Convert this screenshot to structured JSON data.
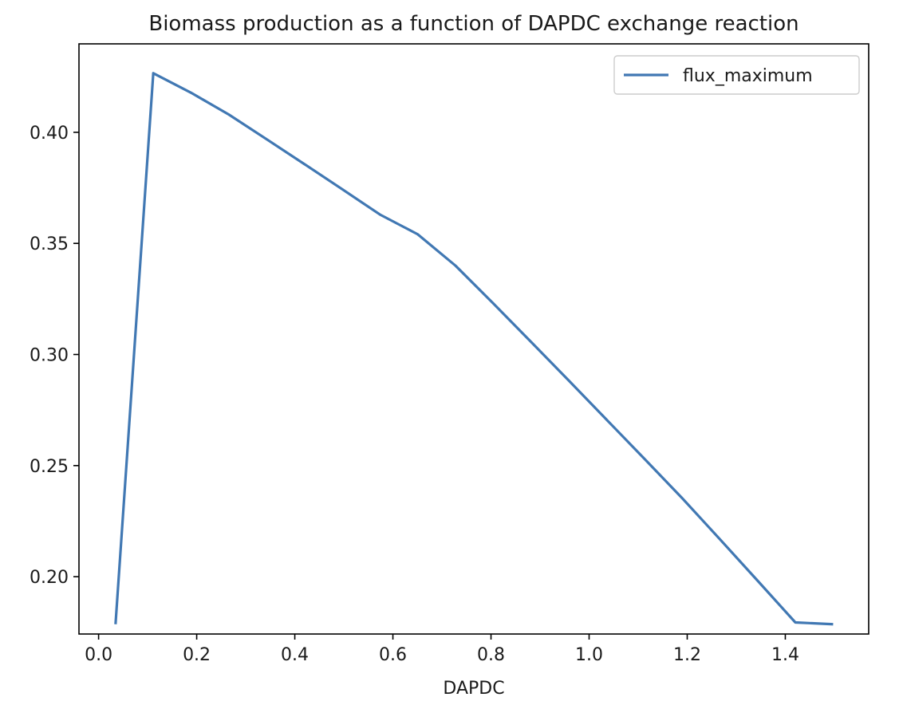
{
  "chart_data": {
    "type": "line",
    "title": "Biomass production as a function of DAPDC exchange reaction",
    "xlabel": "DAPDC",
    "ylabel": "",
    "xlim": [
      -0.04,
      1.57
    ],
    "ylim": [
      0.1742,
      0.4398
    ],
    "xticks": [
      0.0,
      0.2,
      0.4,
      0.6,
      0.8,
      1.0,
      1.2,
      1.4
    ],
    "xtick_labels": [
      "0.0",
      "0.2",
      "0.4",
      "0.6",
      "0.8",
      "1.0",
      "1.2",
      "1.4"
    ],
    "yticks": [
      0.2,
      0.25,
      0.3,
      0.35,
      0.4
    ],
    "ytick_labels": [
      "0.20",
      "0.25",
      "0.30",
      "0.35",
      "0.40"
    ],
    "grid": false,
    "legend_position": "upper right",
    "series": [
      {
        "name": "flux_maximum",
        "color": "#4178b3",
        "x": [
          0.0345,
          0.1115,
          0.1885,
          0.2655,
          0.3425,
          0.4195,
          0.4965,
          0.5735,
          0.6505,
          0.7275,
          0.8045,
          0.8815,
          0.9585,
          1.0355,
          1.1125,
          1.1895,
          1.2665,
          1.3435,
          1.4205,
          1.4975
        ],
        "y": [
          0.1786,
          0.4266,
          0.4178,
          0.408,
          0.3969,
          0.3857,
          0.3744,
          0.363,
          0.3541,
          0.34,
          0.323,
          0.3057,
          0.2883,
          0.2707,
          0.2531,
          0.2354,
          0.2169,
          0.1982,
          0.1794,
          0.1786
        ]
      }
    ]
  }
}
